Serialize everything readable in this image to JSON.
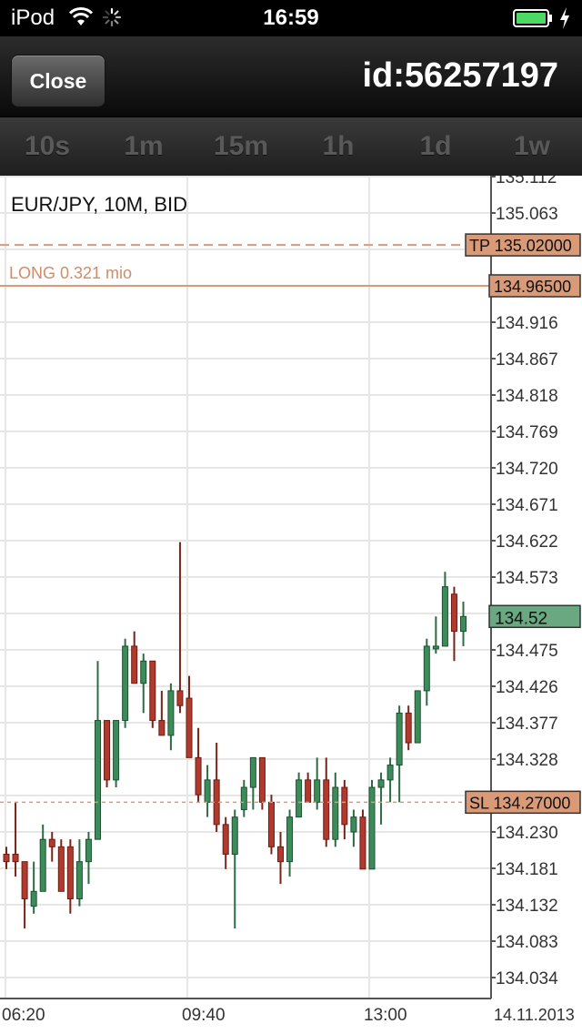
{
  "status_bar": {
    "carrier": "iPod",
    "time": "16:59"
  },
  "nav": {
    "close_label": "Close",
    "title": "id:56257197"
  },
  "timeframes": [
    "10s",
    "1m",
    "15m",
    "1h",
    "1d",
    "1w"
  ],
  "chart_data": {
    "type": "candlestick",
    "title": "EUR/JPY, 10M, BID",
    "y_ticks": [
      "135.112",
      "135.063",
      "134.916",
      "134.867",
      "134.818",
      "134.769",
      "134.720",
      "134.671",
      "134.622",
      "134.573",
      "134.475",
      "134.426",
      "134.377",
      "134.328",
      "134.230",
      "134.181",
      "134.132",
      "134.083",
      "134.034"
    ],
    "x_ticks": [
      "06:20",
      "09:40",
      "13:00"
    ],
    "date_label": "14.11.2013",
    "ylim": [
      134.0,
      135.13
    ],
    "current_price": "134.52",
    "take_profit": {
      "label": "TP 135.02000",
      "value": 135.02
    },
    "position": {
      "label": "LONG 0.321 mio",
      "price_label": "134.96500",
      "value": 134.965
    },
    "stop_loss": {
      "label": "SL 134.27000",
      "value": 134.27
    },
    "colors": {
      "up": "#3c8c5a",
      "down": "#b03a2e",
      "current": "#6aa882",
      "order": "#d99a78"
    },
    "candles": [
      {
        "o": 134.2,
        "h": 134.21,
        "l": 134.18,
        "c": 134.19
      },
      {
        "o": 134.2,
        "h": 134.27,
        "l": 134.17,
        "c": 134.19
      },
      {
        "o": 134.19,
        "h": 134.19,
        "l": 134.1,
        "c": 134.14
      },
      {
        "o": 134.13,
        "h": 134.19,
        "l": 134.12,
        "c": 134.15
      },
      {
        "o": 134.15,
        "h": 134.24,
        "l": 134.15,
        "c": 134.22
      },
      {
        "o": 134.22,
        "h": 134.23,
        "l": 134.19,
        "c": 134.21
      },
      {
        "o": 134.21,
        "h": 134.22,
        "l": 134.15,
        "c": 134.15
      },
      {
        "o": 134.21,
        "h": 134.22,
        "l": 134.12,
        "c": 134.14
      },
      {
        "o": 134.14,
        "h": 134.22,
        "l": 134.13,
        "c": 134.19
      },
      {
        "o": 134.19,
        "h": 134.23,
        "l": 134.16,
        "c": 134.22
      },
      {
        "o": 134.22,
        "h": 134.46,
        "l": 134.22,
        "c": 134.38
      },
      {
        "o": 134.38,
        "h": 134.38,
        "l": 134.29,
        "c": 134.3
      },
      {
        "o": 134.3,
        "h": 134.38,
        "l": 134.29,
        "c": 134.38
      },
      {
        "o": 134.38,
        "h": 134.49,
        "l": 134.37,
        "c": 134.48
      },
      {
        "o": 134.48,
        "h": 134.5,
        "l": 134.43,
        "c": 134.43
      },
      {
        "o": 134.43,
        "h": 134.47,
        "l": 134.39,
        "c": 134.46
      },
      {
        "o": 134.46,
        "h": 134.46,
        "l": 134.37,
        "c": 134.38
      },
      {
        "o": 134.38,
        "h": 134.42,
        "l": 134.36,
        "c": 134.36
      },
      {
        "o": 134.36,
        "h": 134.43,
        "l": 134.34,
        "c": 134.42
      },
      {
        "o": 134.42,
        "h": 134.62,
        "l": 134.39,
        "c": 134.4
      },
      {
        "o": 134.41,
        "h": 134.44,
        "l": 134.33,
        "c": 134.33
      },
      {
        "o": 134.33,
        "h": 134.37,
        "l": 134.27,
        "c": 134.28
      },
      {
        "o": 134.27,
        "h": 134.32,
        "l": 134.25,
        "c": 134.3
      },
      {
        "o": 134.3,
        "h": 134.35,
        "l": 134.23,
        "c": 134.24
      },
      {
        "o": 134.24,
        "h": 134.25,
        "l": 134.18,
        "c": 134.2
      },
      {
        "o": 134.2,
        "h": 134.26,
        "l": 134.1,
        "c": 134.25
      },
      {
        "o": 134.26,
        "h": 134.3,
        "l": 134.25,
        "c": 134.29
      },
      {
        "o": 134.29,
        "h": 134.33,
        "l": 134.26,
        "c": 134.33
      },
      {
        "o": 134.33,
        "h": 134.33,
        "l": 134.26,
        "c": 134.27
      },
      {
        "o": 134.27,
        "h": 134.28,
        "l": 134.2,
        "c": 134.21
      },
      {
        "o": 134.21,
        "h": 134.23,
        "l": 134.16,
        "c": 134.19
      },
      {
        "o": 134.19,
        "h": 134.26,
        "l": 134.17,
        "c": 134.25
      },
      {
        "o": 134.25,
        "h": 134.31,
        "l": 134.25,
        "c": 134.3
      },
      {
        "o": 134.3,
        "h": 134.31,
        "l": 134.27,
        "c": 134.27
      },
      {
        "o": 134.27,
        "h": 134.33,
        "l": 134.26,
        "c": 134.3
      },
      {
        "o": 134.3,
        "h": 134.33,
        "l": 134.21,
        "c": 134.22
      },
      {
        "o": 134.22,
        "h": 134.31,
        "l": 134.21,
        "c": 134.29
      },
      {
        "o": 134.29,
        "h": 134.3,
        "l": 134.22,
        "c": 134.24
      },
      {
        "o": 134.23,
        "h": 134.26,
        "l": 134.21,
        "c": 134.25
      },
      {
        "o": 134.25,
        "h": 134.26,
        "l": 134.18,
        "c": 134.18
      },
      {
        "o": 134.18,
        "h": 134.3,
        "l": 134.18,
        "c": 134.29
      },
      {
        "o": 134.29,
        "h": 134.31,
        "l": 134.24,
        "c": 134.3
      },
      {
        "o": 134.3,
        "h": 134.33,
        "l": 134.27,
        "c": 134.32
      },
      {
        "o": 134.32,
        "h": 134.4,
        "l": 134.27,
        "c": 134.39
      },
      {
        "o": 134.39,
        "h": 134.4,
        "l": 134.34,
        "c": 134.35
      },
      {
        "o": 134.35,
        "h": 134.42,
        "l": 134.35,
        "c": 134.42
      },
      {
        "o": 134.42,
        "h": 134.49,
        "l": 134.4,
        "c": 134.48
      },
      {
        "o": 134.48,
        "h": 134.52,
        "l": 134.47,
        "c": 134.48
      },
      {
        "o": 134.48,
        "h": 134.58,
        "l": 134.48,
        "c": 134.56
      },
      {
        "o": 134.55,
        "h": 134.56,
        "l": 134.46,
        "c": 134.5
      },
      {
        "o": 134.5,
        "h": 134.54,
        "l": 134.48,
        "c": 134.52
      }
    ]
  }
}
